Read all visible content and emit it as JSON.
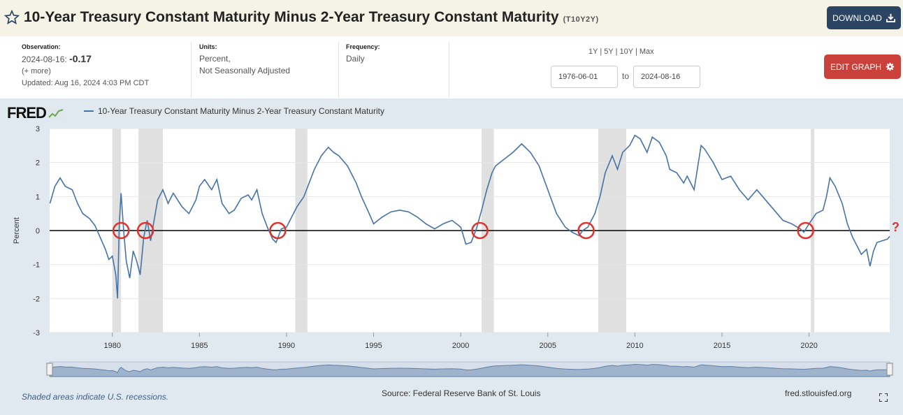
{
  "header": {
    "title": "10-Year Treasury Constant Maturity Minus 2-Year Treasury Constant Maturity",
    "series_id": "(T10Y2Y)",
    "download_label": "DOWNLOAD",
    "icons": {
      "favorite": "star-icon",
      "download": "download-icon"
    }
  },
  "meta": {
    "observation_label": "Observation:",
    "observation_date": "2024-08-16:",
    "observation_value": "-0.17",
    "more": "(+ more)",
    "updated": "Updated: Aug 16, 2024 4:03 PM CDT",
    "units_label": "Units:",
    "units_line1": "Percent,",
    "units_line2": "Not Seasonally Adjusted",
    "frequency_label": "Frequency:",
    "frequency": "Daily",
    "ranges": [
      "1Y",
      "5Y",
      "10Y",
      "Max"
    ],
    "range_sep": "|",
    "start_date": "1976-06-01",
    "to_label": "to",
    "end_date": "2024-08-16",
    "edit_label": "EDIT GRAPH",
    "icons": {
      "edit": "gear-icon"
    }
  },
  "chart_data": {
    "type": "line",
    "logo": "FRED",
    "title": "10-Year Treasury Constant Maturity Minus 2-Year Treasury Constant Maturity",
    "ylabel": "Percent",
    "xlabel": "",
    "ylim": [
      -3,
      3
    ],
    "xlim": [
      1976.4,
      2024.63
    ],
    "yticks": [
      3,
      2,
      1,
      0,
      -1,
      -2,
      -3
    ],
    "xticks": [
      1980,
      1985,
      1990,
      1995,
      2000,
      2005,
      2010,
      2015,
      2020
    ],
    "grid": true,
    "legend_position": "top-left",
    "zero_line": true,
    "series": [
      {
        "name": "10-Year Treasury Constant Maturity Minus 2-Year Treasury Constant Maturity",
        "color": "#4572a7",
        "points": [
          [
            1976.42,
            0.8
          ],
          [
            1976.7,
            1.3
          ],
          [
            1977.0,
            1.55
          ],
          [
            1977.3,
            1.3
          ],
          [
            1977.7,
            1.2
          ],
          [
            1978.0,
            0.8
          ],
          [
            1978.3,
            0.5
          ],
          [
            1978.7,
            0.35
          ],
          [
            1979.0,
            0.15
          ],
          [
            1979.3,
            -0.2
          ],
          [
            1979.6,
            -0.55
          ],
          [
            1979.8,
            -0.85
          ],
          [
            1980.0,
            -0.75
          ],
          [
            1980.2,
            -1.3
          ],
          [
            1980.3,
            -2.0
          ],
          [
            1980.4,
            0.2
          ],
          [
            1980.5,
            1.1
          ],
          [
            1980.65,
            0.0
          ],
          [
            1980.8,
            -0.9
          ],
          [
            1981.0,
            -1.4
          ],
          [
            1981.2,
            -0.6
          ],
          [
            1981.4,
            -0.9
          ],
          [
            1981.6,
            -1.3
          ],
          [
            1981.8,
            -0.2
          ],
          [
            1982.0,
            0.3
          ],
          [
            1982.2,
            -0.3
          ],
          [
            1982.4,
            0.3
          ],
          [
            1982.6,
            0.9
          ],
          [
            1982.9,
            1.2
          ],
          [
            1983.2,
            0.8
          ],
          [
            1983.5,
            1.1
          ],
          [
            1984.0,
            0.7
          ],
          [
            1984.4,
            0.5
          ],
          [
            1984.8,
            0.9
          ],
          [
            1985.0,
            1.3
          ],
          [
            1985.3,
            1.5
          ],
          [
            1985.7,
            1.2
          ],
          [
            1986.0,
            1.5
          ],
          [
            1986.3,
            0.8
          ],
          [
            1986.7,
            0.5
          ],
          [
            1987.0,
            0.6
          ],
          [
            1987.4,
            0.95
          ],
          [
            1987.8,
            1.05
          ],
          [
            1988.0,
            0.9
          ],
          [
            1988.3,
            1.2
          ],
          [
            1988.6,
            0.5
          ],
          [
            1988.9,
            0.1
          ],
          [
            1989.2,
            -0.25
          ],
          [
            1989.4,
            -0.35
          ],
          [
            1989.7,
            0.05
          ],
          [
            1990.0,
            0.1
          ],
          [
            1990.3,
            0.4
          ],
          [
            1990.6,
            0.7
          ],
          [
            1991.0,
            1.0
          ],
          [
            1991.3,
            1.4
          ],
          [
            1991.6,
            1.8
          ],
          [
            1992.0,
            2.2
          ],
          [
            1992.4,
            2.45
          ],
          [
            1992.7,
            2.3
          ],
          [
            1993.0,
            2.2
          ],
          [
            1993.5,
            1.9
          ],
          [
            1994.0,
            1.4
          ],
          [
            1994.3,
            1.0
          ],
          [
            1994.7,
            0.55
          ],
          [
            1995.0,
            0.2
          ],
          [
            1995.5,
            0.4
          ],
          [
            1996.0,
            0.55
          ],
          [
            1996.5,
            0.6
          ],
          [
            1997.0,
            0.55
          ],
          [
            1997.5,
            0.4
          ],
          [
            1998.0,
            0.2
          ],
          [
            1998.5,
            0.05
          ],
          [
            1999.0,
            0.2
          ],
          [
            1999.5,
            0.3
          ],
          [
            2000.0,
            0.1
          ],
          [
            2000.3,
            -0.4
          ],
          [
            2000.6,
            -0.35
          ],
          [
            2000.9,
            0.05
          ],
          [
            2001.2,
            0.6
          ],
          [
            2001.5,
            1.2
          ],
          [
            2001.8,
            1.7
          ],
          [
            2002.0,
            1.9
          ],
          [
            2002.5,
            2.1
          ],
          [
            2003.0,
            2.3
          ],
          [
            2003.5,
            2.55
          ],
          [
            2004.0,
            2.3
          ],
          [
            2004.5,
            1.9
          ],
          [
            2005.0,
            1.2
          ],
          [
            2005.5,
            0.5
          ],
          [
            2006.0,
            0.1
          ],
          [
            2006.4,
            -0.05
          ],
          [
            2006.8,
            -0.15
          ],
          [
            2007.0,
            0.0
          ],
          [
            2007.3,
            0.1
          ],
          [
            2007.7,
            0.5
          ],
          [
            2008.0,
            1.0
          ],
          [
            2008.3,
            1.7
          ],
          [
            2008.7,
            2.2
          ],
          [
            2009.0,
            1.8
          ],
          [
            2009.3,
            2.3
          ],
          [
            2009.7,
            2.5
          ],
          [
            2010.0,
            2.8
          ],
          [
            2010.3,
            2.7
          ],
          [
            2010.7,
            2.3
          ],
          [
            2011.0,
            2.75
          ],
          [
            2011.4,
            2.6
          ],
          [
            2011.8,
            2.2
          ],
          [
            2012.0,
            1.8
          ],
          [
            2012.4,
            1.7
          ],
          [
            2012.8,
            1.4
          ],
          [
            2013.0,
            1.6
          ],
          [
            2013.4,
            1.2
          ],
          [
            2013.8,
            2.5
          ],
          [
            2014.0,
            2.4
          ],
          [
            2014.5,
            2.0
          ],
          [
            2015.0,
            1.5
          ],
          [
            2015.5,
            1.6
          ],
          [
            2016.0,
            1.2
          ],
          [
            2016.5,
            0.9
          ],
          [
            2017.0,
            1.2
          ],
          [
            2017.5,
            0.9
          ],
          [
            2018.0,
            0.6
          ],
          [
            2018.5,
            0.3
          ],
          [
            2019.0,
            0.2
          ],
          [
            2019.5,
            0.05
          ],
          [
            2019.7,
            -0.05
          ],
          [
            2020.0,
            0.2
          ],
          [
            2020.4,
            0.5
          ],
          [
            2020.8,
            0.6
          ],
          [
            2021.0,
            1.0
          ],
          [
            2021.2,
            1.55
          ],
          [
            2021.5,
            1.3
          ],
          [
            2021.9,
            0.8
          ],
          [
            2022.2,
            0.2
          ],
          [
            2022.5,
            -0.2
          ],
          [
            2022.8,
            -0.5
          ],
          [
            2023.0,
            -0.7
          ],
          [
            2023.3,
            -0.55
          ],
          [
            2023.5,
            -1.05
          ],
          [
            2023.7,
            -0.6
          ],
          [
            2023.9,
            -0.35
          ],
          [
            2024.2,
            -0.3
          ],
          [
            2024.5,
            -0.25
          ],
          [
            2024.63,
            -0.17
          ]
        ]
      }
    ],
    "recessions": [
      [
        1980.0,
        1980.5
      ],
      [
        1981.5,
        1982.9
      ],
      [
        1990.5,
        1991.2
      ],
      [
        2001.2,
        2001.9
      ],
      [
        2007.9,
        2009.5
      ],
      [
        2020.1,
        2020.3
      ]
    ],
    "annotations": {
      "circles_at_zero": [
        1980.5,
        1981.9,
        1989.5,
        2001.1,
        2007.2,
        2019.8
      ],
      "question_mark": "?"
    },
    "footnote": "Shaded areas indicate U.S. recessions.",
    "source": "Source: Federal Reserve Bank of St. Louis",
    "website": "fred.stlouisfed.org"
  }
}
